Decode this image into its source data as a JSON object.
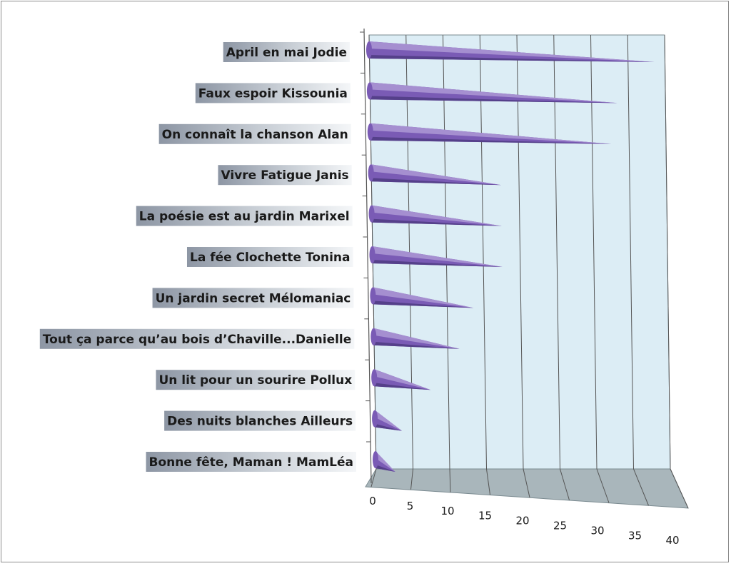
{
  "chart_data": {
    "type": "bar",
    "orientation": "horizontal",
    "style": "3d-cone",
    "categories": [
      "April en mai Jodie",
      "Faux espoir Kissounia",
      "On connaît la chanson Alan",
      "Vivre Fatigue Janis",
      "La poésie est au jardin  Marixel",
      "La fée Clochette Tonina",
      "Un jardin secret Mélomaniac",
      "Tout ça parce qu’au bois d’Chaville...Danielle",
      "Un lit pour un sourire Pollux",
      "Des nuits blanches Ailleurs",
      "Bonne fête, Maman ! MamLéa"
    ],
    "values": [
      38,
      33,
      32,
      17,
      17,
      17,
      13,
      11,
      7,
      3,
      2
    ],
    "xlim": [
      0,
      40
    ],
    "x_ticks": [
      "0",
      "5",
      "10",
      "15",
      "20",
      "25",
      "30",
      "35",
      "40"
    ],
    "grid": true,
    "title": "",
    "xlabel": "",
    "ylabel": "",
    "colors": {
      "bar_top": "#a58fd0",
      "bar_bottom": "#7a5bb5",
      "bar_dark": "#55408a",
      "back_wall": "#dcedf5",
      "floor": "#a9b6bb",
      "gridline": "#555555",
      "label_bg_dark": "#8d96a4",
      "label_bg_light": "#f4f6f8"
    }
  }
}
